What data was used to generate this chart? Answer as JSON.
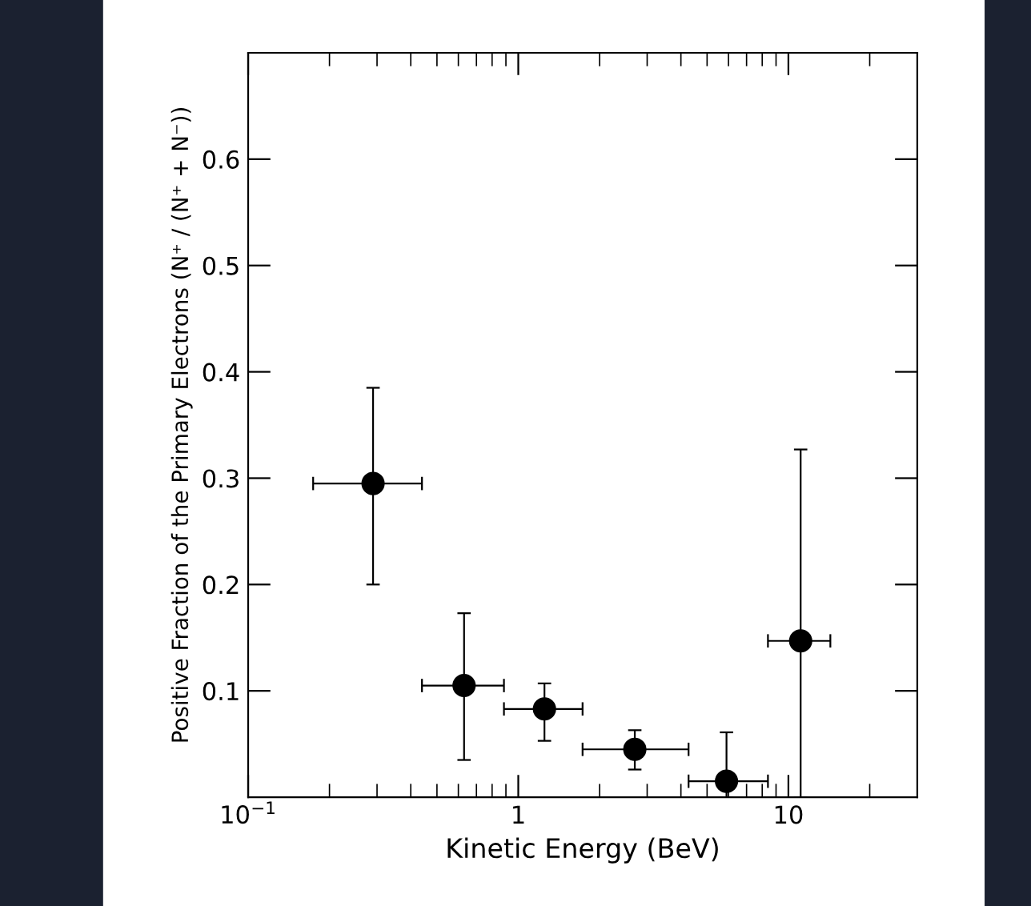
{
  "chart_data": {
    "type": "scatter",
    "xlabel": "Kinetic Energy (BeV)",
    "ylabel": "Positive Fraction of the Primary Electrons (N⁺ / (N⁺ + N⁻))",
    "log": "x",
    "x": [
      0.29,
      0.63,
      1.25,
      2.7,
      5.9,
      11.1
    ],
    "series": [
      {
        "color": "#000000",
        "values": [
          0.295,
          0.105,
          0.083,
          0.045,
          0.015,
          0.147
        ],
        "errors": [
          [
            0.2,
            0.385
          ],
          [
            0.035,
            0.173
          ],
          [
            0.053,
            0.107
          ],
          [
            0.026,
            0.063
          ],
          [
            0.0,
            0.061
          ],
          [
            0.0,
            0.327
          ]
        ],
        "xerrors": [
          [
            0.174,
            0.44
          ],
          [
            0.44,
            0.885
          ],
          [
            0.885,
            1.73
          ],
          [
            1.73,
            4.27
          ],
          [
            4.27,
            8.4
          ],
          [
            8.4,
            14.3
          ]
        ]
      }
    ],
    "marker": "circle",
    "grid": false,
    "legend": false,
    "xlim": [
      0.1,
      30
    ],
    "xticks": [
      {
        "value": 0.1,
        "label": "10$^{−1}$"
      },
      {
        "value": 0.2,
        "label": null
      },
      {
        "value": 0.3,
        "label": null
      },
      {
        "value": 0.4,
        "label": null
      },
      {
        "value": 0.5,
        "label": null
      },
      {
        "value": 0.6,
        "label": null
      },
      {
        "value": 0.7,
        "label": null
      },
      {
        "value": 0.8,
        "label": null
      },
      {
        "value": 0.9,
        "label": null
      },
      1,
      {
        "value": 2,
        "label": null
      },
      {
        "value": 3,
        "label": null
      },
      {
        "value": 4,
        "label": null
      },
      {
        "value": 5,
        "label": null
      },
      {
        "value": 6,
        "label": null
      },
      {
        "value": 7,
        "label": null
      },
      {
        "value": 8,
        "label": null
      },
      {
        "value": 9,
        "label": null
      },
      10,
      {
        "value": 20,
        "label": null
      }
    ],
    "ylim": [
      0,
      0.7
    ],
    "yticks": [
      0.1,
      0.2,
      0.3,
      0.4,
      0.5,
      0.6
    ]
  }
}
